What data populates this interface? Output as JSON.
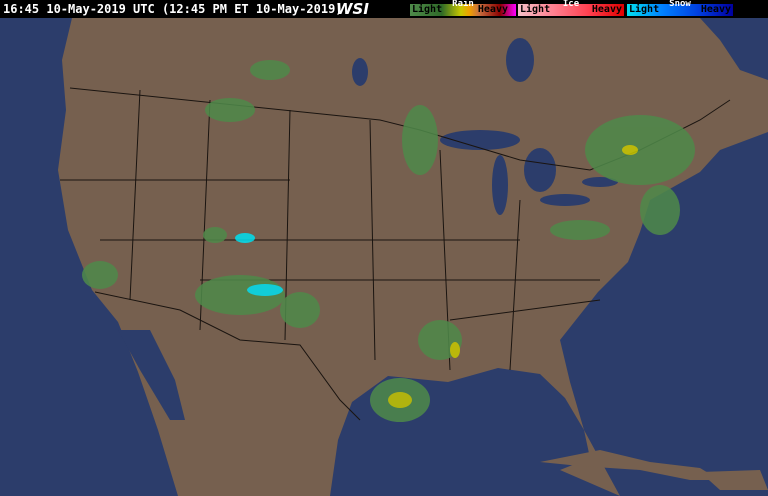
{
  "header": {
    "timestamp": "16:45 10-May-2019 UTC  (12:45 PM ET 10-May-2019)",
    "logo": "WSI"
  },
  "legend": [
    {
      "type": "Rain",
      "light": "Light",
      "heavy": "Heavy",
      "colors": [
        "#4f8a4a",
        "#2f6a28",
        "#c8c800",
        "#f0a000",
        "#c87040",
        "#8b0000",
        "#ff00ff"
      ]
    },
    {
      "type": "Ice",
      "light": "Light",
      "heavy": "Heavy",
      "colors": [
        "#f4c0c8",
        "#ff8090",
        "#ff4050",
        "#e00000"
      ]
    },
    {
      "type": "Snow",
      "light": "Light",
      "heavy": "Heavy",
      "colors": [
        "#00e0f0",
        "#0080ff",
        "#0040e0",
        "#0000a0"
      ]
    }
  ],
  "map": {
    "land_color": "#76604f",
    "water_color": "#2c3d6b",
    "border_color": "#1a1410"
  }
}
